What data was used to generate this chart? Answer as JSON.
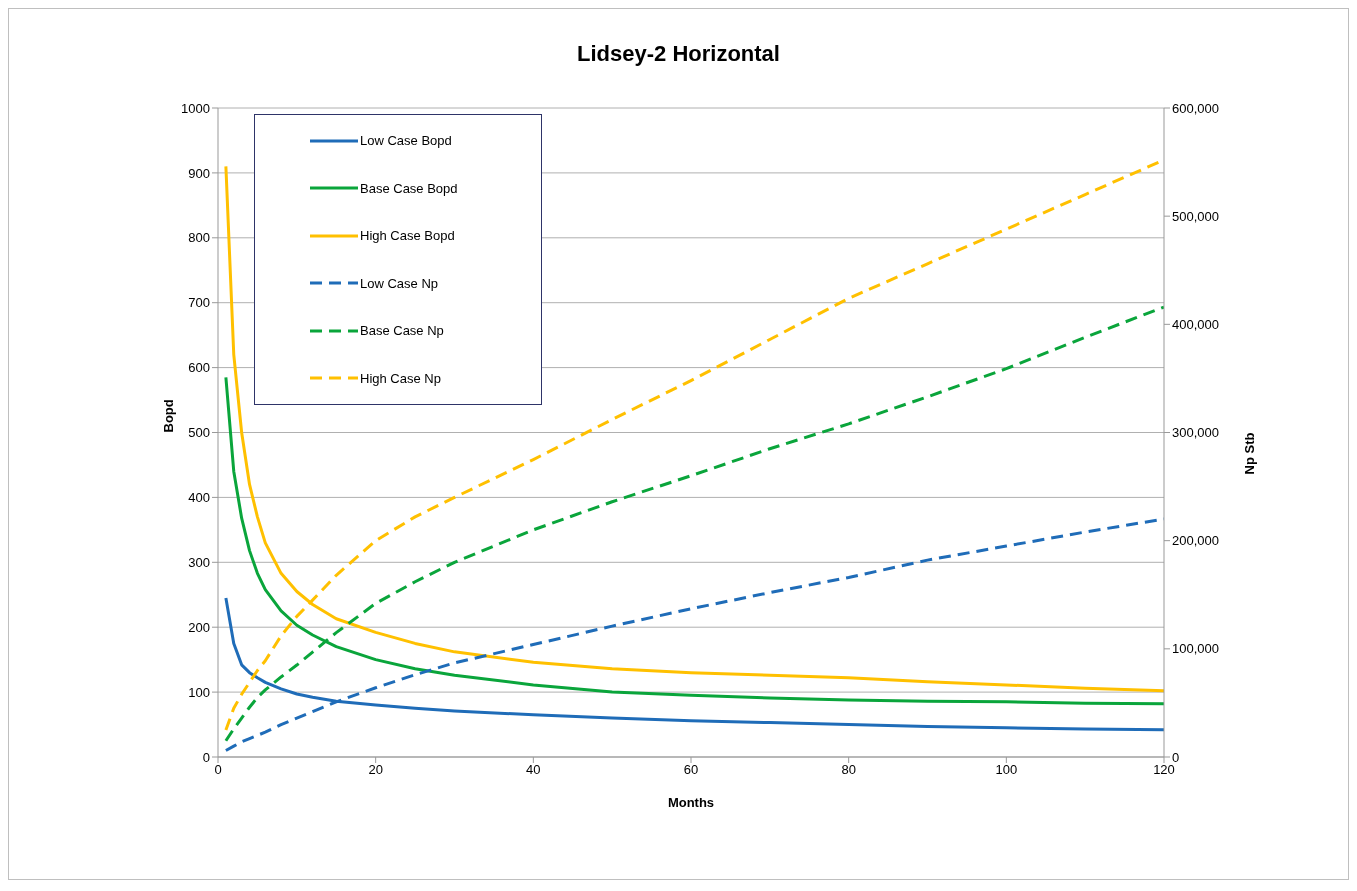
{
  "chart_data": {
    "type": "line",
    "title": "Lidsey-2 Horizontal",
    "xlabel": "Months",
    "ylabel": "Bopd",
    "y2label": "Np Stb",
    "x": [
      1,
      2,
      3,
      4,
      5,
      6,
      8,
      10,
      12,
      15,
      20,
      25,
      30,
      40,
      50,
      60,
      70,
      80,
      90,
      100,
      110,
      120
    ],
    "series": [
      {
        "name": "Low Case Bopd",
        "color": "#1f6cb8",
        "values": [
          245,
          175,
          142,
          130,
          122,
          115,
          105,
          97,
          92,
          86,
          80,
          75,
          71,
          65,
          60,
          56,
          53,
          50,
          47,
          45,
          43,
          42
        ]
      },
      {
        "name": "Base Case Bopd",
        "color": "#0aa53b",
        "values": [
          585,
          440,
          368,
          318,
          283,
          258,
          225,
          203,
          188,
          170,
          150,
          136,
          126,
          111,
          100,
          95,
          91,
          88,
          86,
          85,
          83,
          82
        ]
      },
      {
        "name": "High Case Bopd",
        "color": "#ffc000",
        "values": [
          910,
          620,
          500,
          420,
          370,
          330,
          283,
          255,
          235,
          213,
          192,
          175,
          162,
          146,
          136,
          130,
          126,
          122,
          116,
          111,
          106,
          102
        ]
      },
      {
        "name": "Low Case Np",
        "color": "#1f6cb8",
        "axis": "y2",
        "line_style": "dashed",
        "values": [
          6000,
          10000,
          14000,
          17000,
          20000,
          23000,
          30000,
          36000,
          42000,
          51000,
          64000,
          76000,
          87000,
          104000,
          121000,
          137000,
          152000,
          166000,
          182000,
          195000,
          208000,
          220000
        ]
      },
      {
        "name": "Base Case Np",
        "color": "#0aa53b",
        "axis": "y2",
        "line_style": "dashed",
        "values": [
          15000,
          26000,
          36000,
          46000,
          55000,
          62000,
          74000,
          85000,
          97000,
          115000,
          142000,
          162000,
          180000,
          210000,
          236000,
          260000,
          285000,
          308000,
          333000,
          359000,
          388000,
          416000
        ]
      },
      {
        "name": "High Case Np",
        "color": "#ffc000",
        "axis": "y2",
        "line_style": "dashed",
        "values": [
          25000,
          45000,
          58000,
          69000,
          80000,
          89000,
          112000,
          130000,
          145000,
          168000,
          200000,
          222000,
          240000,
          275000,
          312000,
          348000,
          386000,
          424000,
          456000,
          488000,
          520000,
          552000
        ]
      }
    ],
    "xlim": [
      0,
      120
    ],
    "xticks": [
      0,
      20,
      40,
      60,
      80,
      100,
      120
    ],
    "ylim": [
      0,
      1000
    ],
    "yticks": [
      0,
      100,
      200,
      300,
      400,
      500,
      600,
      700,
      800,
      900,
      1000
    ],
    "y2lim": [
      0,
      600000
    ],
    "y2ticks": [
      0,
      {
        "value": 100000,
        "label": "100,000"
      },
      {
        "value": 200000,
        "label": "200,000"
      },
      {
        "value": 300000,
        "label": "300,000"
      },
      {
        "value": 400000,
        "label": "400,000"
      },
      {
        "value": 500000,
        "label": "500,000"
      },
      {
        "value": 600000,
        "label": "600,000"
      }
    ],
    "grid": "y",
    "legend": "top left",
    "marker": "none",
    "line_style": "solid"
  }
}
